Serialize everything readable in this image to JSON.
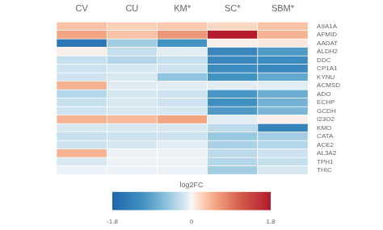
{
  "chart_data": {
    "type": "heatmap",
    "categories": [
      "CV",
      "CU",
      "KM*",
      "SC*",
      "SBM*"
    ],
    "rows": [
      "A9A1A",
      "AFMID",
      "AADAT",
      "ALDH2",
      "DDC",
      "CP1A1",
      "KYNU",
      "ACMSD",
      "ADO",
      "ECHP",
      "GCDH",
      "I23O2",
      "KMO",
      "CATA",
      "ACE2",
      "AL3A2",
      "TPH1",
      "THIC"
    ],
    "values": [
      [
        0.35,
        0.25,
        0.3,
        0.2,
        0.35
      ],
      [
        0.55,
        0.35,
        0.65,
        1.75,
        0.45
      ],
      [
        -1.55,
        -0.45,
        -1.1,
        0.05,
        0.1
      ],
      [
        0.05,
        -0.25,
        -0.1,
        -1.3,
        -1.0
      ],
      [
        -0.25,
        -0.35,
        -0.25,
        -1.25,
        -1.2
      ],
      [
        -0.2,
        -0.15,
        -0.2,
        -1.2,
        -1.25
      ],
      [
        -0.2,
        -0.15,
        -0.55,
        -1.1,
        -0.85
      ],
      [
        0.45,
        -0.1,
        -0.1,
        -0.1,
        -0.1
      ],
      [
        -0.35,
        -0.15,
        -0.2,
        -1.05,
        -0.8
      ],
      [
        -0.25,
        -0.15,
        -0.2,
        -1.15,
        -0.75
      ],
      [
        -0.2,
        -0.15,
        -0.15,
        -1.0,
        -0.7
      ],
      [
        0.45,
        0.4,
        0.55,
        -0.1,
        0.05
      ],
      [
        -0.15,
        -0.15,
        -0.15,
        -0.3,
        -1.35
      ],
      [
        -0.25,
        -0.2,
        -0.2,
        -0.5,
        -0.45
      ],
      [
        -0.2,
        -0.15,
        -0.1,
        -0.4,
        -0.35
      ],
      [
        0.45,
        -0.05,
        -0.05,
        -0.3,
        -0.2
      ],
      [
        -0.15,
        -0.05,
        -0.05,
        -0.35,
        -0.25
      ],
      [
        -0.05,
        -0.05,
        -0.05,
        -0.45,
        -0.15
      ]
    ],
    "colors": [
      "#2166ac",
      "#4393c3",
      "#92c5de",
      "#d1e5f0",
      "#f7f7f7",
      "#fddbc7",
      "#f4a582",
      "#d6604d",
      "#b2182b"
    ],
    "colorbar": {
      "label": "log2FC",
      "range": [
        -1.8,
        1.8
      ],
      "ticks": [
        -1.8,
        0,
        1.8
      ]
    }
  }
}
